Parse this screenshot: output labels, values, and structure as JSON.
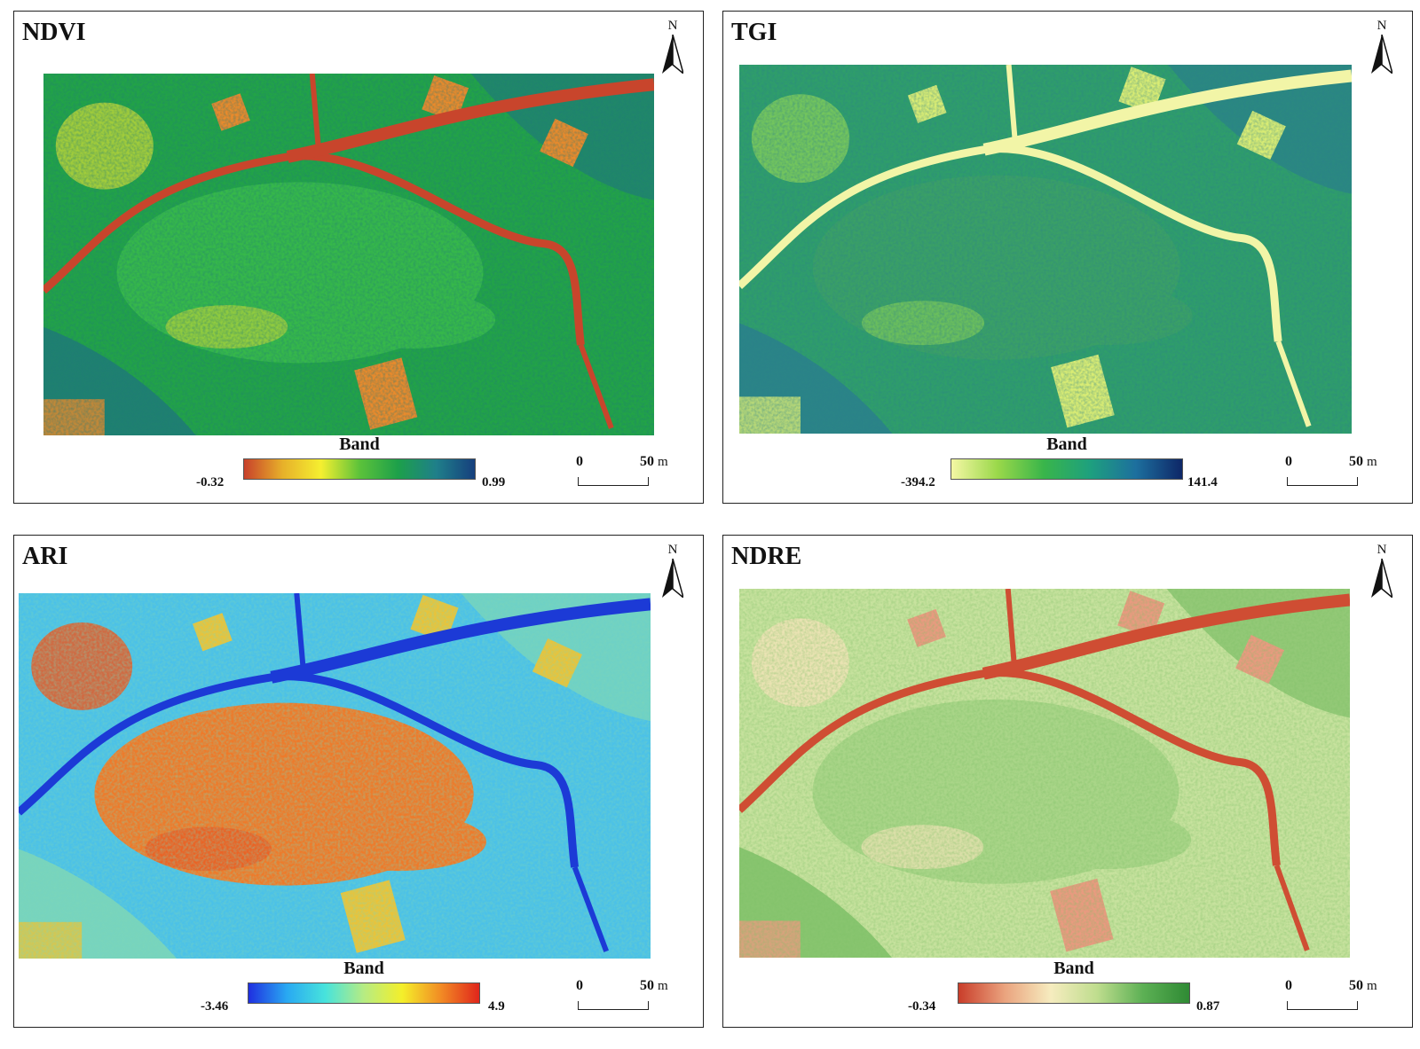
{
  "panels": [
    {
      "title": "NDVI",
      "legend_title": "Band",
      "min_label": "-0.32",
      "max_label": "0.99",
      "colors": [
        "#c8412b",
        "#e7b02a",
        "#f5ef30",
        "#5cc23a",
        "#1da04a",
        "#1f7f8a",
        "#163f7d"
      ],
      "map_palette": {
        "background": "#22a347",
        "canopy": "#36b84a",
        "edge": "#1f7a78",
        "road": "#c8452c",
        "bare": "#e98a2c",
        "mixed": "#b7d33a"
      }
    },
    {
      "title": "TGI",
      "legend_title": "Band",
      "min_label": "-394.2",
      "max_label": "141.4",
      "colors": [
        "#f4f7a4",
        "#9ad84a",
        "#39b54a",
        "#1ea07e",
        "#1d6f9e",
        "#0e2767"
      ],
      "map_palette": {
        "background": "#2f9e6a",
        "canopy": "#3aa066",
        "edge": "#2a7f8c",
        "road": "#f2f5a7",
        "bare": "#d9ec74",
        "mixed": "#7fcb5a"
      }
    },
    {
      "title": "ARI",
      "legend_title": "Band",
      "min_label": "-3.46",
      "max_label": "4.9",
      "colors": [
        "#1f2fe0",
        "#29a9f2",
        "#47e3dc",
        "#b6ec83",
        "#f4ef2a",
        "#f28b24",
        "#e0261c"
      ],
      "map_palette": {
        "background": "#4bc1e8",
        "canopy": "#ee7a2a",
        "edge": "#7fd7b6",
        "road": "#1c3ad6",
        "bare": "#e9c33a",
        "mixed": "#e85a24"
      }
    },
    {
      "title": "NDRE",
      "legend_title": "Band",
      "min_label": "-0.34",
      "max_label": "0.87",
      "colors": [
        "#c93d2a",
        "#eaa37e",
        "#f6ecbf",
        "#bfdd8e",
        "#5cb054",
        "#2f8a34"
      ],
      "map_palette": {
        "background": "#c7e29e",
        "canopy": "#a9d588",
        "edge": "#7dbf66",
        "road": "#cf4d33",
        "bare": "#ea9a80",
        "mixed": "#f0e3b6"
      }
    }
  ],
  "north_label": "N",
  "scale_bar": {
    "zero": "0",
    "max": "50",
    "unit": "m"
  }
}
